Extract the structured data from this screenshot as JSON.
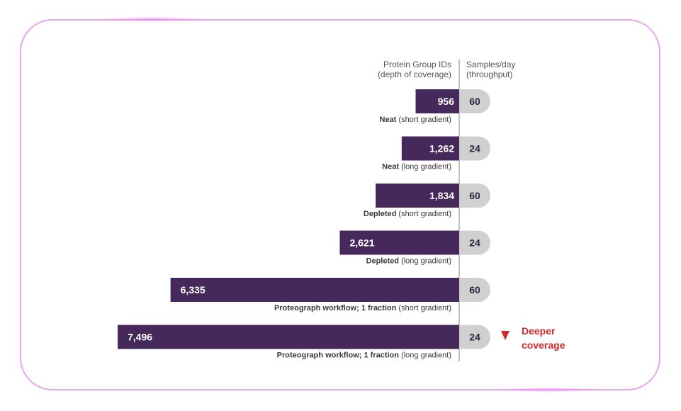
{
  "chart_data": {
    "type": "bar",
    "orientation": "horizontal",
    "header_left": [
      "Protein Group IDs",
      "(depth of coverage)"
    ],
    "header_right": [
      "Samples/day",
      "(throughput)"
    ],
    "categories": [
      {
        "bold": "Neat",
        "light": "(short gradient)"
      },
      {
        "bold": "Neat",
        "light": "(long gradient)"
      },
      {
        "bold": "Depleted",
        "light": "(short gradient)"
      },
      {
        "bold": "Depleted",
        "light": "(long gradient)"
      },
      {
        "bold": "Proteograph workflow; 1 fraction",
        "light": "(short gradient)"
      },
      {
        "bold": "Proteograph workflow; 1 fraction",
        "light": "(long gradient)"
      }
    ],
    "series": [
      {
        "name": "Protein Group IDs",
        "values": [
          956,
          1262,
          1834,
          2621,
          6335,
          7496
        ],
        "labels": [
          "956",
          "1,262",
          "1,834",
          "2,621",
          "6,335",
          "7,496"
        ]
      },
      {
        "name": "Samples/day",
        "values": [
          60,
          24,
          60,
          24,
          60,
          24
        ]
      }
    ],
    "annotation": [
      "Deeper",
      "coverage"
    ],
    "colors": {
      "bar": "#45295a",
      "pill": "#d0d0d0",
      "arrow": "#d42a2a",
      "frame": "#e8a6f0"
    }
  }
}
